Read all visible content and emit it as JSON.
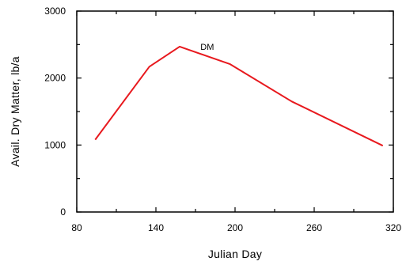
{
  "chart_data": {
    "type": "line",
    "title": "",
    "xlabel": "Julian Day",
    "ylabel": "Avail. Dry Matter, lb/a",
    "xlim": [
      80,
      320
    ],
    "ylim": [
      0,
      3000
    ],
    "x_ticks": [
      80,
      140,
      200,
      260,
      320
    ],
    "y_ticks": [
      0,
      1000,
      2000,
      3000
    ],
    "grid": false,
    "series": [
      {
        "name": "DM",
        "color": "#e8191e",
        "x": [
          94,
          135,
          158,
          196,
          243,
          312
        ],
        "y": [
          1080,
          2170,
          2470,
          2210,
          1650,
          990
        ]
      }
    ]
  }
}
